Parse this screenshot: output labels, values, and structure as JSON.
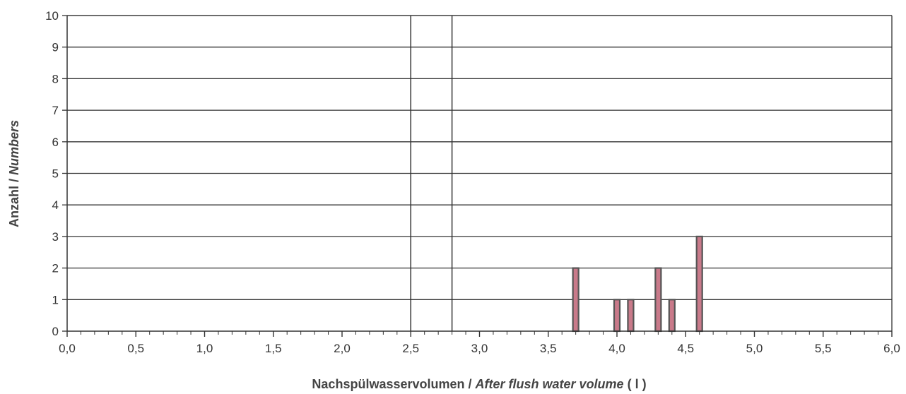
{
  "chart_data": {
    "type": "bar",
    "xlabel": "Nachspülwasservolumen  /  After flush water volume ( l )",
    "xlabel_parts": [
      "Nachspülwasservolumen",
      " / ",
      "After flush water volume",
      " ( l )"
    ],
    "ylabel": "Anzahl  /  Numbers",
    "ylabel_parts": [
      "Anzahl",
      " / ",
      "Numbers"
    ],
    "xlim": [
      0,
      6
    ],
    "ylim": [
      0,
      10
    ],
    "xticks": [
      "0,0",
      "0,5",
      "1,0",
      "1,5",
      "2,0",
      "2,5",
      "3,0",
      "3,5",
      "4,0",
      "4,5",
      "5,0",
      "5,5",
      "6,0"
    ],
    "yticks": [
      "0",
      "1",
      "2",
      "3",
      "4",
      "5",
      "6",
      "7",
      "8",
      "9",
      "10"
    ],
    "grid": "horizontal",
    "reference_lines_x": [
      2.5,
      2.8
    ],
    "x": [
      3.7,
      4.0,
      4.1,
      4.3,
      4.4,
      4.6
    ],
    "values": [
      2,
      1,
      1,
      2,
      1,
      3
    ],
    "bar_fill": "#c97a8a",
    "bar_edge": "#555555",
    "grid_color": "#333333"
  }
}
